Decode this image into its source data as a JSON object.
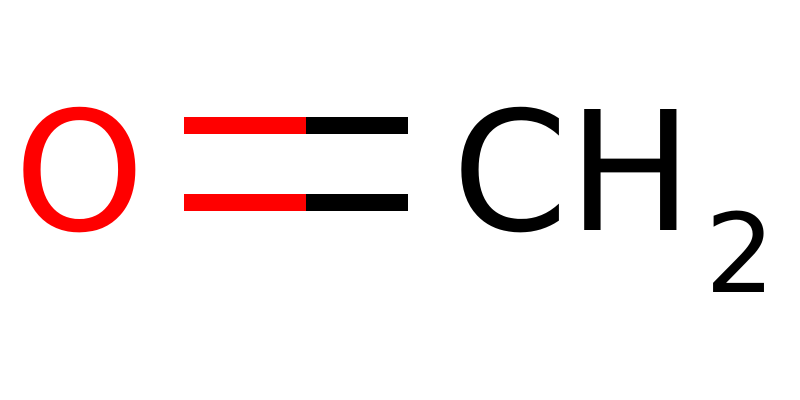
{
  "molecule": {
    "left_atom": {
      "symbol": "O",
      "color": "#ff0000"
    },
    "right_atom": {
      "symbol": "CH",
      "subscript": "2",
      "color": "#000000"
    },
    "bond": {
      "order": 2,
      "left_color": "#ff0000",
      "right_color": "#000000"
    }
  }
}
